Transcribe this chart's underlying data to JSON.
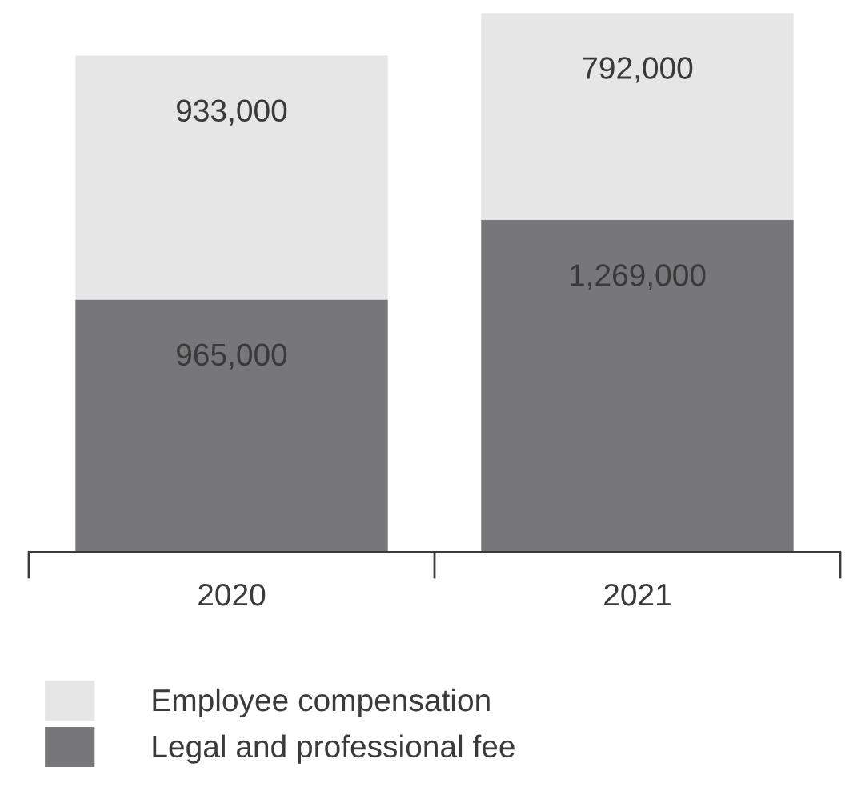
{
  "chart_data": {
    "type": "bar",
    "stacked": true,
    "categories": [
      "2020",
      "2021"
    ],
    "series": [
      {
        "name": "Legal and professional fee",
        "color": "#77777a",
        "values": [
          965000,
          1269000
        ],
        "value_labels": [
          "965,000",
          "1,269,000"
        ]
      },
      {
        "name": "Employee compensation",
        "color": "#e6e6e7",
        "values": [
          933000,
          792000
        ],
        "value_labels": [
          "933,000",
          "792,000"
        ]
      }
    ],
    "legend": "bottom left",
    "grid": false
  }
}
